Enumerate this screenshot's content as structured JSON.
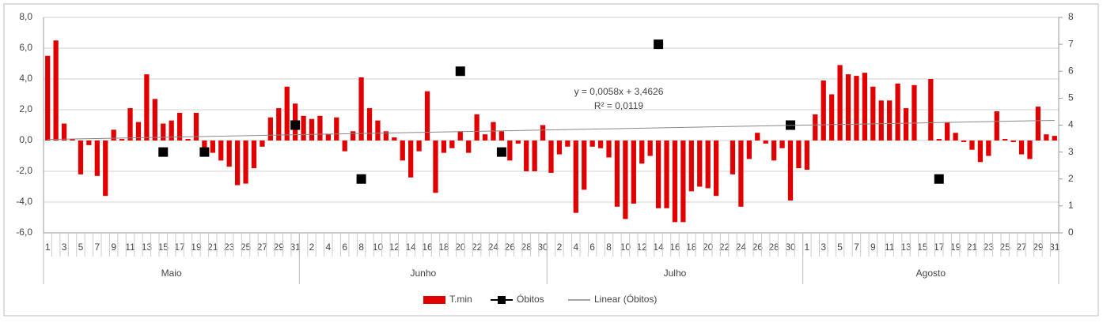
{
  "chart_data": {
    "type": "bar",
    "categories": [
      "1",
      null,
      "3",
      null,
      "5",
      null,
      "7",
      null,
      "9",
      null,
      "11",
      null,
      "13",
      null,
      "15",
      null,
      "17",
      null,
      "19",
      null,
      "21",
      null,
      "23",
      null,
      "25",
      null,
      "27",
      null,
      "29",
      null,
      "31",
      null,
      "2",
      null,
      "4",
      null,
      "6",
      null,
      "8",
      null,
      "10",
      null,
      "12",
      null,
      "14",
      null,
      "16",
      null,
      "18",
      null,
      "20",
      null,
      "22",
      null,
      "24",
      null,
      "26",
      null,
      "28",
      null,
      "30",
      null,
      "2",
      null,
      "4",
      null,
      "6",
      null,
      "8",
      null,
      "10",
      null,
      "12",
      null,
      "14",
      null,
      "16",
      null,
      "18",
      null,
      "20",
      null,
      "22",
      null,
      "24",
      null,
      "26",
      null,
      "28",
      null,
      "30",
      null,
      "1",
      null,
      "3",
      null,
      "5",
      null,
      "7",
      null,
      "9",
      null,
      "11",
      null,
      "13",
      null,
      "15",
      null,
      "17",
      null,
      "19",
      null,
      "21",
      null,
      "23",
      null,
      "25",
      null,
      "27",
      null,
      "29",
      null,
      "31"
    ],
    "groups": [
      "Maio",
      "Junho",
      "Julho",
      "Agosto"
    ],
    "series": [
      {
        "name": "T.min",
        "type": "bar",
        "color": "#e00000",
        "values": [
          5.5,
          6.5,
          1.1,
          0.1,
          -2.2,
          -0.3,
          -2.3,
          -3.6,
          0.7,
          0.1,
          2.1,
          1.2,
          4.3,
          2.7,
          1.1,
          1.3,
          1.8,
          0.1,
          1.8,
          -0.5,
          -0.8,
          -1.3,
          -1.7,
          -2.9,
          -2.8,
          -1.8,
          -0.4,
          1.5,
          2.1,
          3.5,
          2.4,
          1.6,
          1.4,
          1.6,
          0.4,
          1.5,
          -0.7,
          0.6,
          4.1,
          2.1,
          1.3,
          0.6,
          0.2,
          -1.3,
          -2.4,
          -0.7,
          3.2,
          -3.4,
          -0.8,
          -0.5,
          0.6,
          -0.8,
          1.7,
          0.4,
          1.2,
          0.6,
          -1.3,
          -0.2,
          -2.0,
          -2.0,
          1.0,
          -2.1,
          -0.9,
          -0.4,
          -4.7,
          -3.2,
          -0.4,
          -0.5,
          -1.1,
          -4.3,
          -5.1,
          -4.1,
          -1.5,
          -1.0,
          -4.4,
          -4.4,
          -5.3,
          -5.3,
          -3.3,
          -3.0,
          -3.1,
          -3.6,
          0.0,
          -2.2,
          -4.3,
          -1.2,
          0.5,
          -0.2,
          -1.3,
          -0.5,
          -3.9,
          -1.8,
          -1.9,
          1.7,
          3.9,
          3.0,
          4.9,
          4.3,
          4.2,
          4.4,
          3.5,
          2.6,
          2.6,
          3.7,
          2.1,
          3.6,
          0.0,
          4.0,
          0.1,
          1.2,
          0.5,
          -0.1,
          -0.6,
          -1.4,
          -1.0,
          1.9,
          0.1,
          -0.1,
          -0.9,
          -1.2,
          2.2,
          0.4,
          0.3
        ]
      },
      {
        "name": "Óbitos",
        "type": "scatter",
        "axis": "y2",
        "color": "#000000",
        "values": [
          null,
          null,
          null,
          null,
          null,
          null,
          null,
          null,
          null,
          null,
          null,
          null,
          null,
          null,
          3,
          null,
          null,
          null,
          null,
          3,
          null,
          null,
          null,
          null,
          null,
          null,
          null,
          null,
          null,
          null,
          4,
          null,
          null,
          null,
          null,
          null,
          null,
          null,
          2,
          null,
          null,
          null,
          null,
          null,
          null,
          null,
          null,
          null,
          null,
          null,
          6,
          null,
          null,
          null,
          null,
          3,
          null,
          null,
          null,
          null,
          null,
          null,
          null,
          null,
          null,
          null,
          null,
          null,
          null,
          null,
          null,
          null,
          null,
          null,
          7,
          null,
          null,
          null,
          null,
          null,
          null,
          null,
          null,
          null,
          null,
          null,
          null,
          null,
          null,
          null,
          4,
          null,
          null,
          null,
          null,
          null,
          null,
          null,
          null,
          null,
          null,
          null,
          null,
          null,
          null,
          null,
          null,
          null,
          2,
          null,
          null,
          null,
          null,
          null,
          null,
          null,
          null,
          null,
          null,
          null,
          null,
          null,
          null
        ]
      }
    ],
    "trend": {
      "name": "Linear (Óbitos)",
      "color": "#888888",
      "axis": "y2",
      "slope": 0.0058,
      "intercept": 3.4626,
      "equation": "y = 0,0058x + 3,4626",
      "r2": 0.0119,
      "r2_label": "R² = 0,0119"
    },
    "ylim": [
      -6,
      8
    ],
    "yticks": [
      {
        "value": -6,
        "label": "-6,0"
      },
      {
        "value": -4,
        "label": "-4,0"
      },
      {
        "value": -2,
        "label": "-2,0"
      },
      {
        "value": 0,
        "label": "0,0"
      },
      {
        "value": 2,
        "label": "2,0"
      },
      {
        "value": 4,
        "label": "4,0"
      },
      {
        "value": 6,
        "label": "6,0"
      },
      {
        "value": 8,
        "label": "8,0"
      }
    ],
    "y2lim": [
      0,
      8
    ],
    "y2ticks": [
      0,
      1,
      2,
      3,
      4,
      5,
      6,
      7,
      8
    ],
    "grid": true,
    "legend": "bottom"
  }
}
